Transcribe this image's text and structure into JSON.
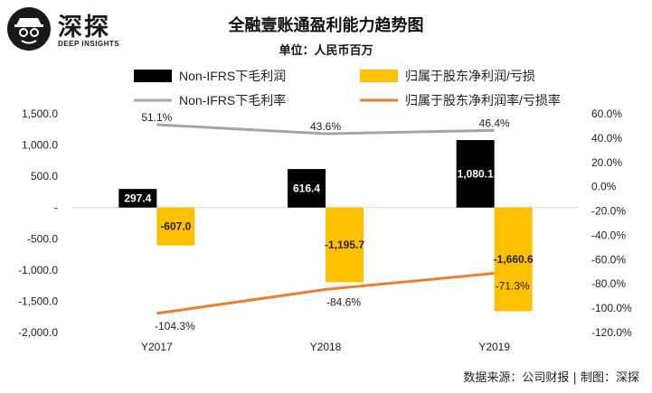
{
  "logo": {
    "name": "深探",
    "subtitle": "DEEP INSIGHTS"
  },
  "header": {
    "title": "全融壹账通盈利能力趋势图",
    "unit": "单位：人民币百万"
  },
  "footer": {
    "source": "数据来源：公司财报 | 制图：深探"
  },
  "colors": {
    "gross_profit": "#000000",
    "net_loss": "#FFC000",
    "gross_margin": "#A5A5A5",
    "net_loss_rate": "#ED7D31"
  },
  "chart_data": {
    "type": "bar",
    "title": "全融壹账通盈利能力趋势图",
    "subtitle": "单位：人民币百万",
    "categories": [
      "Y2017",
      "Y2018",
      "Y2019"
    ],
    "series": [
      {
        "name": "Non-IFRS下毛利润",
        "kind": "bar",
        "axis": "left",
        "color": "#000000",
        "values": [
          297.4,
          616.4,
          1080.1
        ],
        "labels": [
          "297.4",
          "616.4",
          "1,080.1"
        ]
      },
      {
        "name": "归属于股东净利润/亏损",
        "kind": "bar",
        "axis": "left",
        "color": "#FFC000",
        "values": [
          -607.0,
          -1195.7,
          -1660.6
        ],
        "labels": [
          "-607.0",
          "-1,195.7",
          "-1,660.6"
        ]
      },
      {
        "name": "Non-IFRS下毛利率",
        "kind": "line",
        "axis": "right",
        "color": "#A5A5A5",
        "values": [
          51.1,
          43.6,
          46.4
        ],
        "labels": [
          "51.1%",
          "43.6%",
          "46.4%"
        ]
      },
      {
        "name": "归属于股东净利润率/亏损率",
        "kind": "line",
        "axis": "right",
        "color": "#ED7D31",
        "values": [
          -104.3,
          -84.6,
          -71.3
        ],
        "labels": [
          "-104.3%",
          "-84.6%",
          "-71.3%"
        ]
      }
    ],
    "y_left": {
      "min": -2000,
      "max": 1500,
      "ticks": [
        1500,
        1000,
        500,
        0,
        -500,
        -1000,
        -1500,
        -2000
      ],
      "tick_labels": [
        "1,500.0",
        "1,000.0",
        "500.0",
        "-",
        "-500.0",
        "-1,000.0",
        "-1,500.0",
        "-2,000.0"
      ]
    },
    "y_right": {
      "min": -120,
      "max": 60,
      "ticks": [
        60,
        40,
        20,
        0,
        -20,
        -40,
        -60,
        -80,
        -100,
        -120
      ],
      "tick_labels": [
        "60.0%",
        "40.0%",
        "20.0%",
        "0.0%",
        "-20.0%",
        "-40.0%",
        "-60.0%",
        "-80.0%",
        "-100.0%",
        "-120.0%"
      ]
    },
    "legend_position": "top",
    "grid": false
  }
}
